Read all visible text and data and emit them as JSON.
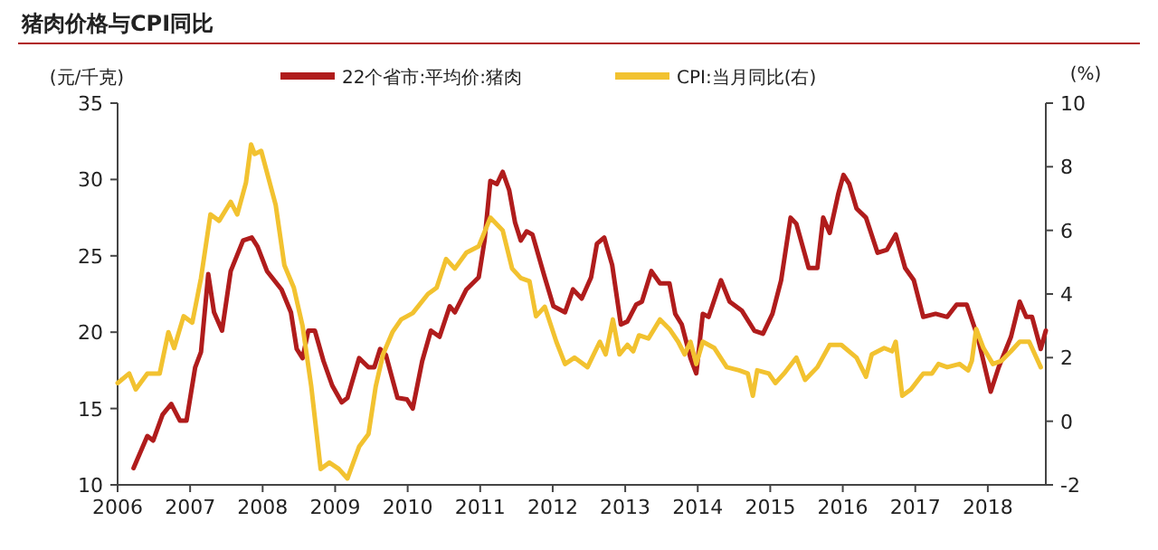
{
  "chart_data": {
    "type": "line",
    "title": "猪肉价格与CPI同比",
    "ylabel": "(元/千克)",
    "y2label": "(%)",
    "legend": "top",
    "xlim": [
      2006,
      2018.8
    ],
    "xticks": [
      2006,
      2007,
      2008,
      2009,
      2010,
      2011,
      2012,
      2013,
      2014,
      2015,
      2016,
      2017,
      2018
    ],
    "ylim": [
      10,
      35
    ],
    "yticks": [
      10,
      15,
      20,
      25,
      30,
      35
    ],
    "y2lim": [
      -2,
      10
    ],
    "y2ticks": [
      -2,
      0,
      2,
      4,
      6,
      8,
      10
    ],
    "series": [
      {
        "name": "22个省市:平均价:猪肉",
        "color": "#b01c1c",
        "x": [
          2006.22,
          2006.41,
          2006.49,
          2006.62,
          2006.74,
          2006.86,
          2006.95,
          2007.07,
          2007.15,
          2007.25,
          2007.33,
          2007.44,
          2007.56,
          2007.73,
          2007.85,
          2007.93,
          2008.06,
          2008.26,
          2008.39,
          2008.47,
          2008.55,
          2008.63,
          2008.72,
          2008.84,
          2008.96,
          2009.09,
          2009.17,
          2009.33,
          2009.46,
          2009.54,
          2009.62,
          2009.7,
          2009.86,
          2009.99,
          2010.07,
          2010.2,
          2010.32,
          2010.44,
          2010.58,
          2010.65,
          2010.81,
          2010.98,
          2011.06,
          2011.14,
          2011.23,
          2011.31,
          2011.4,
          2011.48,
          2011.56,
          2011.64,
          2011.72,
          2011.89,
          2012.01,
          2012.17,
          2012.28,
          2012.4,
          2012.53,
          2012.61,
          2012.71,
          2012.82,
          2012.94,
          2013.03,
          2013.15,
          2013.23,
          2013.36,
          2013.48,
          2013.61,
          2013.69,
          2013.78,
          2013.9,
          2013.98,
          2014.07,
          2014.15,
          2014.32,
          2014.44,
          2014.61,
          2014.78,
          2014.9,
          2015.03,
          2015.15,
          2015.28,
          2015.36,
          2015.53,
          2015.65,
          2015.73,
          2015.82,
          2015.94,
          2016.01,
          2016.09,
          2016.19,
          2016.32,
          2016.48,
          2016.61,
          2016.73,
          2016.86,
          2016.98,
          2017.11,
          2017.28,
          2017.44,
          2017.57,
          2017.71,
          2017.86,
          2017.94,
          2018.04,
          2018.15,
          2018.32,
          2018.44,
          2018.53,
          2018.61,
          2018.73,
          2018.8
        ],
        "values": [
          11.1,
          13.2,
          12.9,
          14.6,
          15.3,
          14.2,
          14.2,
          17.7,
          18.7,
          23.8,
          21.3,
          20.1,
          24.0,
          26.0,
          26.2,
          25.6,
          24.0,
          22.8,
          21.3,
          18.9,
          18.3,
          20.1,
          20.1,
          18.1,
          16.5,
          15.4,
          15.7,
          18.3,
          17.7,
          17.7,
          18.9,
          18.5,
          15.7,
          15.6,
          15.0,
          18.1,
          20.1,
          19.7,
          21.7,
          21.3,
          22.8,
          23.6,
          26.0,
          29.9,
          29.7,
          30.5,
          29.3,
          27.2,
          26.0,
          26.6,
          26.4,
          23.6,
          21.7,
          21.3,
          22.8,
          22.2,
          23.6,
          25.8,
          26.2,
          24.4,
          20.5,
          20.7,
          21.8,
          22.0,
          24.0,
          23.2,
          23.2,
          21.2,
          20.5,
          18.3,
          17.3,
          21.2,
          21.0,
          23.4,
          22.0,
          21.4,
          20.1,
          19.9,
          21.2,
          23.4,
          27.5,
          27.1,
          24.2,
          24.2,
          27.5,
          26.5,
          29.1,
          30.3,
          29.7,
          28.1,
          27.5,
          25.2,
          25.4,
          26.4,
          24.2,
          23.4,
          21.0,
          21.2,
          21.0,
          21.8,
          21.8,
          19.7,
          18.1,
          16.1,
          17.7,
          19.7,
          22.0,
          21.0,
          21.0,
          18.9,
          20.1
        ]
      },
      {
        "name": "CPI:当月同比(右)",
        "color": "#f2c230",
        "axis": "y2",
        "x": [
          2006.0,
          2006.16,
          2006.25,
          2006.41,
          2006.58,
          2006.7,
          2006.78,
          2006.91,
          2007.03,
          2007.15,
          2007.28,
          2007.4,
          2007.56,
          2007.65,
          2007.77,
          2007.84,
          2007.89,
          2007.98,
          2008.18,
          2008.3,
          2008.43,
          2008.55,
          2008.67,
          2008.8,
          2008.92,
          2009.05,
          2009.17,
          2009.33,
          2009.46,
          2009.56,
          2009.66,
          2009.79,
          2009.91,
          2010.07,
          2010.28,
          2010.4,
          2010.53,
          2010.65,
          2010.81,
          2010.98,
          2011.14,
          2011.31,
          2011.44,
          2011.56,
          2011.68,
          2011.77,
          2011.89,
          2012.05,
          2012.17,
          2012.3,
          2012.48,
          2012.65,
          2012.73,
          2012.83,
          2012.92,
          2013.03,
          2013.11,
          2013.19,
          2013.32,
          2013.48,
          2013.61,
          2013.73,
          2013.82,
          2013.9,
          2013.98,
          2014.07,
          2014.23,
          2014.4,
          2014.57,
          2014.69,
          2014.76,
          2014.82,
          2014.98,
          2015.07,
          2015.19,
          2015.36,
          2015.48,
          2015.65,
          2015.82,
          2015.98,
          2016.19,
          2016.32,
          2016.4,
          2016.57,
          2016.68,
          2016.73,
          2016.82,
          2016.94,
          2017.11,
          2017.23,
          2017.32,
          2017.44,
          2017.61,
          2017.73,
          2017.78,
          2017.84,
          2017.94,
          2018.07,
          2018.19,
          2018.32,
          2018.44,
          2018.57,
          2018.73
        ],
        "values": [
          1.2,
          1.5,
          1.0,
          1.5,
          1.5,
          2.8,
          2.3,
          3.3,
          3.1,
          4.5,
          6.5,
          6.3,
          6.9,
          6.5,
          7.5,
          8.7,
          8.4,
          8.5,
          6.8,
          4.9,
          4.2,
          3.0,
          1.1,
          -1.5,
          -1.3,
          -1.5,
          -1.8,
          -0.8,
          -0.4,
          1.1,
          2.1,
          2.8,
          3.2,
          3.4,
          4.0,
          4.2,
          5.1,
          4.8,
          5.3,
          5.5,
          6.4,
          6.0,
          4.8,
          4.5,
          4.4,
          3.3,
          3.6,
          2.5,
          1.8,
          2.0,
          1.7,
          2.5,
          2.1,
          3.2,
          2.1,
          2.4,
          2.2,
          2.7,
          2.6,
          3.2,
          2.9,
          2.5,
          2.1,
          2.5,
          1.8,
          2.5,
          2.3,
          1.7,
          1.6,
          1.5,
          0.8,
          1.6,
          1.5,
          1.2,
          1.5,
          2.0,
          1.3,
          1.7,
          2.4,
          2.4,
          2.0,
          1.4,
          2.1,
          2.3,
          2.2,
          2.5,
          0.8,
          1.0,
          1.5,
          1.5,
          1.8,
          1.7,
          1.8,
          1.6,
          1.9,
          2.9,
          2.3,
          1.8,
          1.9,
          2.2,
          2.5,
          2.5,
          1.7
        ]
      }
    ]
  }
}
